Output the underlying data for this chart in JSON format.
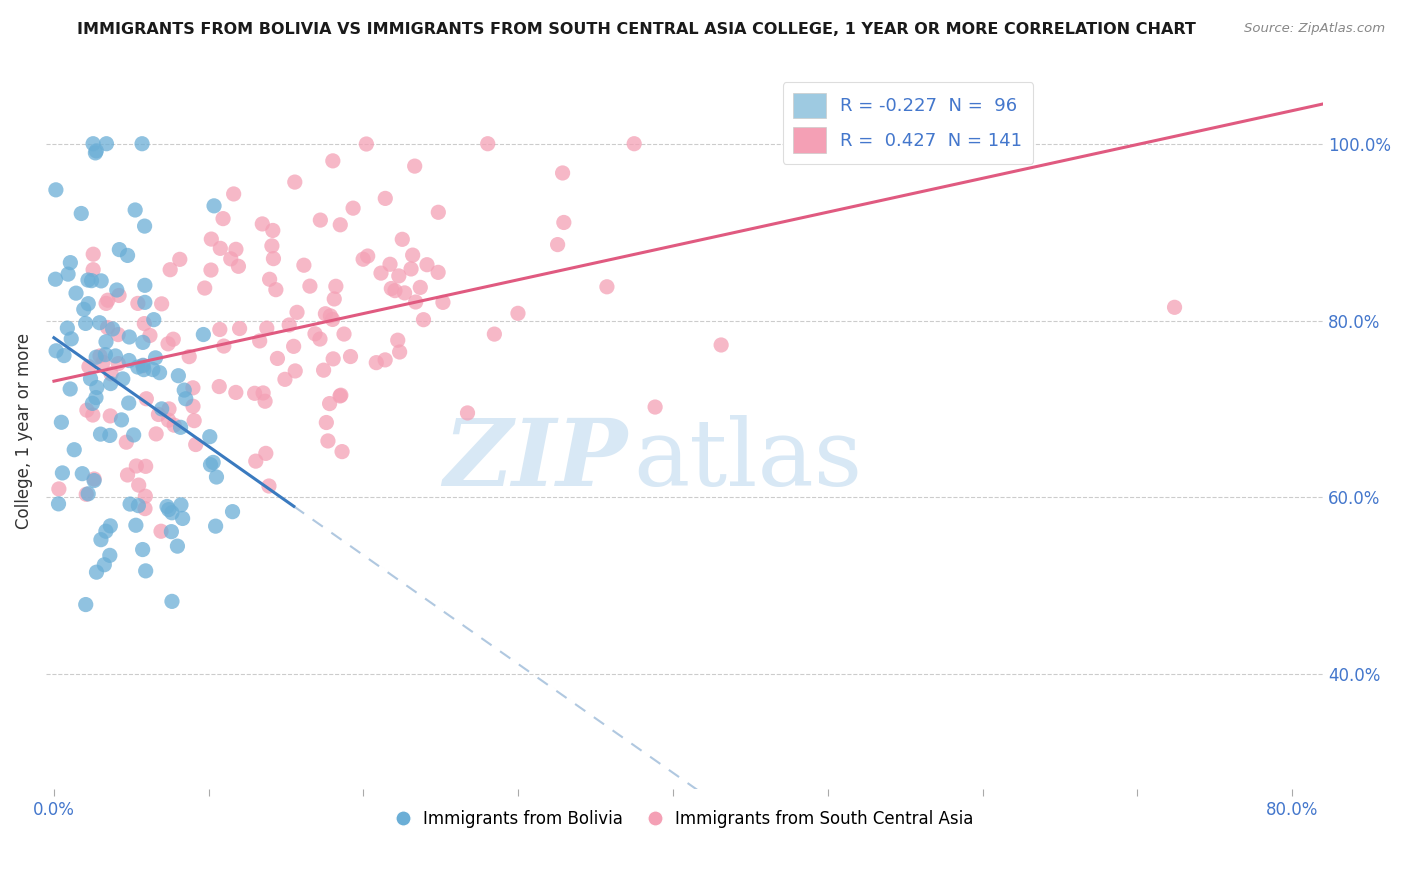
{
  "title": "IMMIGRANTS FROM BOLIVIA VS IMMIGRANTS FROM SOUTH CENTRAL ASIA COLLEGE, 1 YEAR OR MORE CORRELATION CHART",
  "source": "Source: ZipAtlas.com",
  "ylabel": "College, 1 year or more",
  "xlim": [
    -0.005,
    0.82
  ],
  "ylim": [
    0.27,
    1.08
  ],
  "xtick_vals": [
    0.0,
    0.1,
    0.2,
    0.3,
    0.4,
    0.5,
    0.6,
    0.7,
    0.8
  ],
  "xtick_labels": [
    "0.0%",
    "",
    "",
    "",
    "",
    "",
    "",
    "",
    "80.0%"
  ],
  "ytick_vals": [
    0.4,
    0.6,
    0.8,
    1.0
  ],
  "ytick_labels": [
    "40.0%",
    "60.0%",
    "80.0%",
    "100.0%"
  ],
  "bolivia_color": "#6baed6",
  "bolivia_legend_color": "#9ecae1",
  "s_central_asia_color": "#f4a0b5",
  "s_central_asia_legend_color": "#f4a0b5",
  "bolivia_R": -0.227,
  "bolivia_N": 96,
  "s_central_asia_R": 0.427,
  "s_central_asia_N": 141,
  "watermark_zip": "ZIP",
  "watermark_atlas": "atlas",
  "bolivia_line_color": "#3a7abf",
  "bolivia_line_dashed_color": "#b0c8e0",
  "sca_line_color": "#e05a80",
  "grid_color": "#cccccc",
  "title_color": "#1a1a1a",
  "source_color": "#888888",
  "tick_color": "#4477cc",
  "ylabel_color": "#333333"
}
